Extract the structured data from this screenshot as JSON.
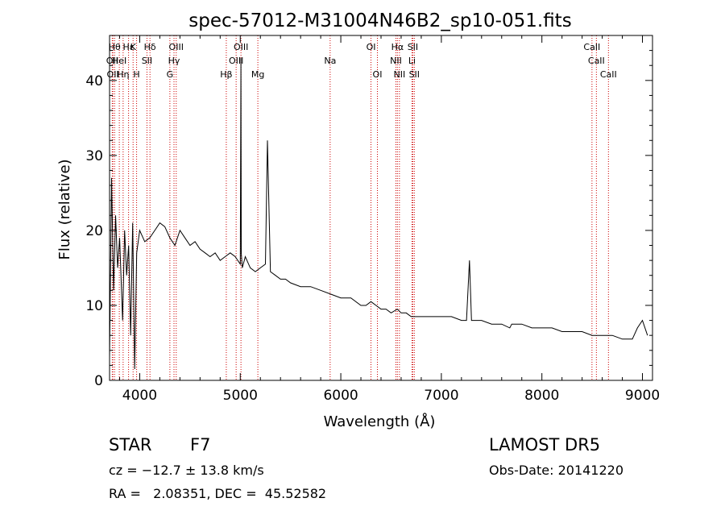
{
  "chart_data": {
    "type": "line",
    "title": "spec-57012-M31004N46B2_sp10-051.fits",
    "xlabel": "Wavelength (Å)",
    "ylabel": "Flux (relative)",
    "xlim": [
      3700,
      9100
    ],
    "ylim": [
      0,
      46
    ],
    "xticks": [
      4000,
      5000,
      6000,
      7000,
      8000,
      9000
    ],
    "yticks": [
      0,
      10,
      20,
      30,
      40
    ],
    "grid": false,
    "line_color": "#000000",
    "marker_color": "#cc0000",
    "series": [
      {
        "x": [
          3700,
          3720,
          3740,
          3760,
          3780,
          3800,
          3830,
          3850,
          3870,
          3890,
          3910,
          3930,
          3950,
          3970,
          4000,
          4050,
          4100,
          4150,
          4200,
          4250,
          4300,
          4350,
          4400,
          4450,
          4500,
          4550,
          4600,
          4650,
          4700,
          4750,
          4800,
          4850,
          4900,
          4950,
          5000,
          5007,
          5010,
          5020,
          5050,
          5100,
          5150,
          5200,
          5250,
          5270,
          5300,
          5350,
          5400,
          5450,
          5500,
          5600,
          5700,
          5800,
          5900,
          6000,
          6100,
          6200,
          6250,
          6300,
          6350,
          6400,
          6450,
          6500,
          6563,
          6600,
          6650,
          6700,
          6800,
          6900,
          7000,
          7100,
          7200,
          7250,
          7280,
          7300,
          7400,
          7500,
          7600,
          7680,
          7700,
          7800,
          7900,
          8000,
          8100,
          8200,
          8300,
          8400,
          8500,
          8600,
          8700,
          8800,
          8900,
          8950,
          9000,
          9050
        ],
        "y": [
          3,
          27,
          12,
          22,
          15,
          19,
          8,
          20,
          14,
          18,
          6,
          21,
          1.5,
          17,
          20,
          18.5,
          19,
          20,
          21,
          20.5,
          19,
          18,
          20,
          19,
          18,
          18.5,
          17.5,
          17,
          16.5,
          17,
          16,
          16.5,
          17,
          16.5,
          15.5,
          43,
          17,
          15,
          16.5,
          15,
          14.5,
          15,
          15.5,
          32,
          14.5,
          14,
          13.5,
          13.5,
          13,
          12.5,
          12.5,
          12,
          11.5,
          11,
          11,
          10,
          10,
          10.5,
          10,
          9.5,
          9.5,
          9,
          9.5,
          9,
          9,
          8.5,
          8.5,
          8.5,
          8.5,
          8.5,
          8,
          8,
          16,
          8,
          8,
          7.5,
          7.5,
          7,
          7.5,
          7.5,
          7,
          7,
          7,
          6.5,
          6.5,
          6.5,
          6,
          6,
          6,
          5.5,
          5.5,
          7,
          8,
          6
        ]
      }
    ],
    "lines": [
      {
        "wl": 3727,
        "label": "OII",
        "row": 1
      },
      {
        "wl": 3733,
        "label": "OII",
        "row": 2
      },
      {
        "wl": 3750,
        "label": "Hθ",
        "row": 0
      },
      {
        "wl": 3797,
        "label": "HeI",
        "row": 1
      },
      {
        "wl": 3835,
        "label": "Hη",
        "row": 2
      },
      {
        "wl": 3889,
        "label": "Hε",
        "row": 0
      },
      {
        "wl": 3934,
        "label": "K",
        "row": 0
      },
      {
        "wl": 3969,
        "label": "H",
        "row": 2
      },
      {
        "wl": 4072,
        "label": "SII",
        "row": 1
      },
      {
        "wl": 4102,
        "label": "Hδ",
        "row": 0
      },
      {
        "wl": 4300,
        "label": "G",
        "row": 2
      },
      {
        "wl": 4341,
        "label": "Hγ",
        "row": 1
      },
      {
        "wl": 4363,
        "label": "OIII",
        "row": 0
      },
      {
        "wl": 4861,
        "label": "Hβ",
        "row": 2
      },
      {
        "wl": 4959,
        "label": "OIII",
        "row": 1
      },
      {
        "wl": 5007,
        "label": "OIII",
        "row": 0
      },
      {
        "wl": 5175,
        "label": "Mg",
        "row": 2
      },
      {
        "wl": 5894,
        "label": "Na",
        "row": 1
      },
      {
        "wl": 6300,
        "label": "OI",
        "row": 0
      },
      {
        "wl": 6364,
        "label": "OI",
        "row": 2
      },
      {
        "wl": 6548,
        "label": "NII",
        "row": 1
      },
      {
        "wl": 6563,
        "label": "Hα",
        "row": 0
      },
      {
        "wl": 6583,
        "label": "NII",
        "row": 2
      },
      {
        "wl": 6708,
        "label": "Li",
        "row": 1
      },
      {
        "wl": 6716,
        "label": "SII",
        "row": 0
      },
      {
        "wl": 6731,
        "label": "SII",
        "row": 2
      },
      {
        "wl": 8498,
        "label": "CaII",
        "row": 0
      },
      {
        "wl": 8542,
        "label": "CaII",
        "row": 1
      },
      {
        "wl": 8662,
        "label": "CaII",
        "row": 2
      }
    ]
  },
  "info": {
    "class_label": "STAR",
    "subclass": "F7",
    "survey": "LAMOST DR5",
    "cz": "cz = −12.7 ± 13.8 km/s",
    "obs_date": "Obs-Date: 20141220",
    "radec": "RA =   2.08351, DEC =  45.52582"
  }
}
